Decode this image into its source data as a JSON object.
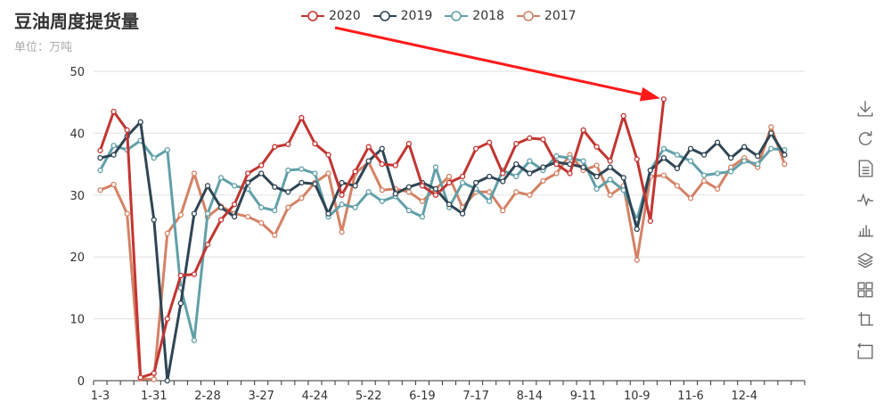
{
  "title": "豆油周度提货量",
  "subtitle": "单位：万吨",
  "toolbox": [
    "download-icon",
    "refresh-icon",
    "data-view-icon",
    "line-chart-icon",
    "bar-chart-icon",
    "stack-icon",
    "tiled-icon",
    "zoom-icon",
    "zoom-reset-icon"
  ],
  "chart_data": {
    "type": "line",
    "title": "豆油周度提货量",
    "ylabel": "",
    "xlabel": "",
    "ylim": [
      0,
      50
    ],
    "yticks": [
      0,
      10,
      20,
      30,
      40,
      50
    ],
    "grid": true,
    "legend_position": "top-center",
    "x_tick_labels": [
      "1-3",
      "1-31",
      "2-28",
      "3-27",
      "4-24",
      "5-22",
      "6-19",
      "7-17",
      "8-14",
      "9-11",
      "10-9",
      "11-6",
      "12-4"
    ],
    "x_tick_step": 4,
    "x_count": 53,
    "series": [
      {
        "name": "2020",
        "color": "#c23531",
        "values": [
          37.2,
          43.5,
          40.5,
          0.5,
          1.2,
          10.0,
          17.0,
          17.2,
          22.0,
          26.0,
          28.5,
          33.5,
          34.8,
          37.8,
          38.2,
          42.5,
          38.3,
          36.5,
          30.0,
          33.8,
          37.8,
          35.0,
          34.8,
          38.3,
          31.5,
          30.0,
          32.0,
          33.0,
          37.5,
          38.5,
          33.5,
          38.3,
          39.2,
          39.0,
          35.0,
          33.5,
          40.5,
          37.8,
          35.5,
          42.8,
          35.8,
          25.8,
          45.5
        ]
      },
      {
        "name": "2019",
        "color": "#2f4554",
        "values": [
          36.0,
          36.5,
          39.5,
          41.8,
          26.0,
          0.0,
          12.5,
          27.0,
          31.5,
          28.0,
          26.5,
          32.0,
          33.5,
          31.3,
          30.5,
          32.0,
          31.8,
          27.0,
          32.0,
          31.5,
          35.5,
          37.5,
          30.2,
          31.3,
          32.0,
          31.0,
          28.5,
          27.0,
          32.0,
          33.0,
          32.2,
          35.0,
          33.5,
          34.5,
          35.3,
          35.0,
          34.5,
          33.0,
          34.5,
          32.8,
          24.5,
          34.0,
          36.0,
          34.3,
          37.5,
          36.5,
          38.5,
          36.0,
          37.8,
          36.3,
          40.0,
          36.5
        ]
      },
      {
        "name": "2018",
        "color": "#61a0a8",
        "values": [
          34.0,
          38.0,
          37.3,
          38.8,
          36.0,
          37.3,
          15.0,
          6.5,
          27.0,
          32.8,
          31.5,
          31.0,
          28.0,
          27.5,
          34.0,
          34.2,
          33.5,
          26.5,
          28.5,
          28.0,
          30.5,
          29.0,
          29.8,
          27.5,
          26.5,
          34.5,
          28.0,
          32.0,
          31.0,
          29.0,
          34.0,
          33.0,
          35.5,
          34.0,
          36.3,
          36.0,
          35.5,
          31.0,
          32.5,
          30.8,
          26.0,
          34.0,
          37.5,
          36.5,
          35.5,
          33.2,
          33.5,
          33.8,
          35.5,
          35.0,
          37.5,
          37.3
        ]
      },
      {
        "name": "2017",
        "color": "#d48265",
        "values": [
          30.8,
          31.7,
          27.0,
          0.3,
          0.2,
          23.8,
          26.8,
          33.5,
          26.5,
          28.2,
          27.0,
          26.5,
          25.5,
          23.5,
          28.0,
          29.5,
          32.0,
          33.5,
          24.0,
          33.5,
          35.3,
          30.8,
          31.0,
          30.5,
          29.0,
          31.0,
          33.0,
          28.0,
          30.5,
          30.5,
          27.5,
          30.5,
          30.0,
          32.3,
          33.5,
          36.5,
          34.0,
          34.8,
          30.0,
          31.5,
          19.5,
          33.0,
          33.2,
          31.5,
          29.5,
          32.3,
          31.0,
          34.5,
          36.0,
          34.5,
          41.0,
          35.0
        ]
      }
    ],
    "annotation": {
      "type": "arrow",
      "color": "#ff1a1a",
      "from_legend": "2020",
      "to_series": "2020",
      "to_index": 42
    }
  }
}
